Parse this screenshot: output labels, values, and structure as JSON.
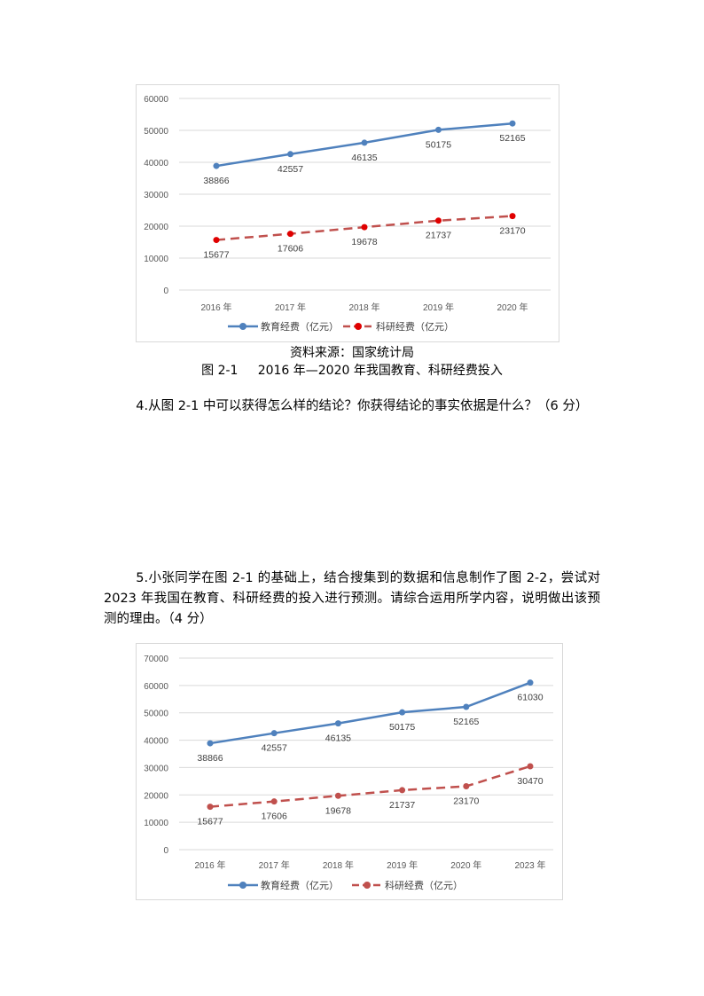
{
  "figure1": {
    "source": "资料来源：国家统计局",
    "caption": "图 2-1     2016 年—2020 年我国教育、科研经费投入"
  },
  "question4": "4.从图 2-1 中可以获得怎么样的结论？你获得结论的事实依据是什么？（6 分）",
  "question5": "5.小张同学在图 2-1 的基础上，结合搜集到的数据和信息制作了图 2-2，尝试对 2023 年我国在教育、科研经费的投入进行预测。请综合运用所学内容，说明做出该预测的理由。（4 分）",
  "chart_data": [
    {
      "type": "line",
      "categories": [
        "2016 年",
        "2017 年",
        "2018 年",
        "2019 年",
        "2020 年"
      ],
      "ylim": [
        0,
        60000
      ],
      "yticks": [
        0,
        10000,
        20000,
        30000,
        40000,
        50000,
        60000
      ],
      "grid": true,
      "legend": "bottom",
      "series": [
        {
          "name": "教育经费（亿元）",
          "values": [
            38866,
            42557,
            46135,
            50175,
            52165
          ],
          "color": "#4f81bd",
          "marker_color": "#4f81bd",
          "dash": false
        },
        {
          "name": "科研经费（亿元）",
          "values": [
            15677,
            17606,
            19678,
            21737,
            23170
          ],
          "color": "#c0504d",
          "marker_color": "#e00000",
          "dash": true
        }
      ]
    },
    {
      "type": "line",
      "categories": [
        "2016 年",
        "2017 年",
        "2018 年",
        "2019 年",
        "2020 年",
        "2023 年"
      ],
      "ylim": [
        0,
        70000
      ],
      "yticks": [
        0,
        10000,
        20000,
        30000,
        40000,
        50000,
        60000,
        70000
      ],
      "grid": true,
      "legend": "bottom",
      "series": [
        {
          "name": "教育经费（亿元）",
          "values": [
            38866,
            42557,
            46135,
            50175,
            52165,
            61030
          ],
          "color": "#4f81bd",
          "marker_color": "#4f81bd",
          "dash": false
        },
        {
          "name": "科研经费（亿元）",
          "values": [
            15677,
            17606,
            19678,
            21737,
            23170,
            30470
          ],
          "color": "#c0504d",
          "marker_color": "#c0504d",
          "dash": true
        }
      ]
    }
  ]
}
